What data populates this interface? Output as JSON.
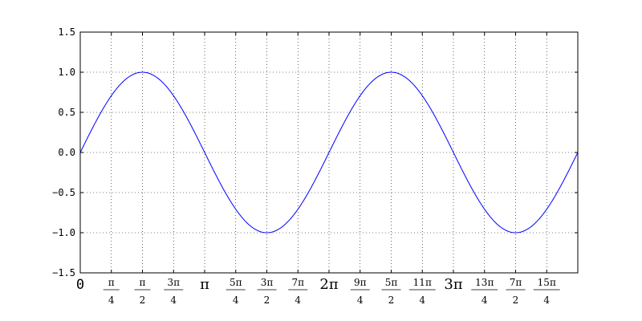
{
  "chart_data": {
    "type": "line",
    "title": "",
    "xlabel": "",
    "ylabel": "",
    "xlim": [
      0,
      12.566370614359172
    ],
    "ylim": [
      -1.5,
      1.5
    ],
    "grid": true,
    "grid_style": "dotted",
    "line_color": "#0000ff",
    "function": "sin",
    "x_sample_step": 0.39269908169872414,
    "series": [
      {
        "name": "",
        "x": [
          0,
          0.3927,
          0.7854,
          1.1781,
          1.5708,
          1.9635,
          2.3562,
          2.7489,
          3.1416,
          3.5343,
          3.927,
          4.3197,
          4.7124,
          5.1051,
          5.4978,
          5.8905,
          6.2832,
          6.6759,
          7.0686,
          7.4613,
          7.854,
          8.2467,
          8.6394,
          9.0321,
          9.4248,
          9.8175,
          10.2102,
          10.6029,
          10.9956,
          11.3883,
          11.781,
          12.1737,
          12.5664
        ],
        "y": [
          0,
          0.3827,
          0.7071,
          0.9239,
          1.0,
          0.9239,
          0.7071,
          0.3827,
          0,
          -0.3827,
          -0.7071,
          -0.9239,
          -1.0,
          -0.9239,
          -0.7071,
          -0.3827,
          0,
          0.3827,
          0.7071,
          0.9239,
          1.0,
          0.9239,
          0.7071,
          0.3827,
          0,
          -0.3827,
          -0.7071,
          -0.9239,
          -1.0,
          -0.9239,
          -0.7071,
          -0.3827,
          0
        ]
      }
    ],
    "y_ticks": [
      {
        "value": -1.5,
        "label": "−1.5"
      },
      {
        "value": -1.0,
        "label": "−1.0"
      },
      {
        "value": -0.5,
        "label": "−0.5"
      },
      {
        "value": 0.0,
        "label": "0.0"
      },
      {
        "value": 0.5,
        "label": "0.5"
      },
      {
        "value": 1.0,
        "label": "1.0"
      },
      {
        "value": 1.5,
        "label": "1.5"
      }
    ],
    "x_ticks": [
      {
        "value": 0,
        "whole": "0"
      },
      {
        "value": 0.7853981633974483,
        "num": "π",
        "den": "4"
      },
      {
        "value": 1.5707963267948966,
        "num": "π",
        "den": "2"
      },
      {
        "value": 2.356194490192345,
        "num": "3π",
        "den": "4"
      },
      {
        "value": 3.141592653589793,
        "whole": "π"
      },
      {
        "value": 3.9269908169872414,
        "num": "5π",
        "den": "4"
      },
      {
        "value": 4.71238898038469,
        "num": "3π",
        "den": "2"
      },
      {
        "value": 5.497787143782138,
        "num": "7π",
        "den": "4"
      },
      {
        "value": 6.283185307179586,
        "whole": "2π"
      },
      {
        "value": 7.0685834705770345,
        "num": "9π",
        "den": "4"
      },
      {
        "value": 7.853981633974483,
        "num": "5π",
        "den": "2"
      },
      {
        "value": 8.63937979737193,
        "num": "11π",
        "den": "4"
      },
      {
        "value": 9.42477796076938,
        "whole": "3π"
      },
      {
        "value": 10.210176124166829,
        "num": "13π",
        "den": "4"
      },
      {
        "value": 10.995574287564276,
        "num": "7π",
        "den": "2"
      },
      {
        "value": 11.780972450961723,
        "num": "15π",
        "den": "4"
      }
    ]
  }
}
